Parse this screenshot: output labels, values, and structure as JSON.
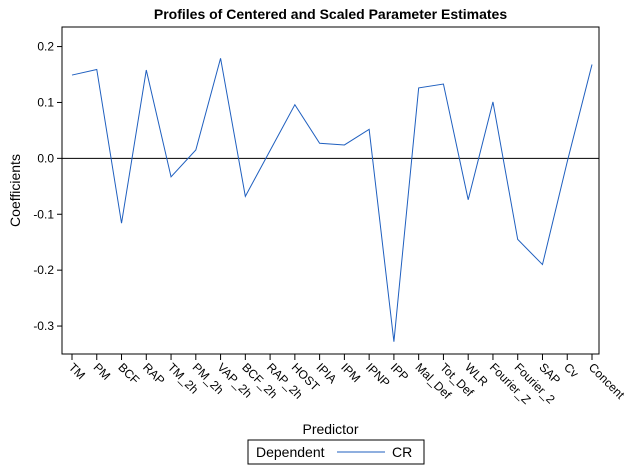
{
  "chart_data": {
    "type": "line",
    "title": "Profiles of Centered and Scaled Parameter Estimates",
    "xlabel": "Predictor",
    "ylabel": "Coefficients",
    "categories": [
      "TM",
      "PM",
      "BCF",
      "RAP",
      "TM_2h",
      "PM_2h",
      "VAP_2h",
      "BCF_2h",
      "RAP_2h",
      "HOST",
      "IPIA",
      "IPM",
      "IPNP",
      "IPP",
      "Mal_Def",
      "Tot_Def",
      "WLR",
      "Fourier_Z",
      "Fourier_2",
      "SAP",
      "Cv",
      "Concent"
    ],
    "series": [
      {
        "name": "CR",
        "color": "#1f5fbf",
        "values": [
          0.149,
          0.159,
          -0.116,
          0.158,
          -0.033,
          0.015,
          0.179,
          -0.068,
          0.014,
          0.096,
          0.027,
          0.024,
          0.052,
          -0.328,
          0.126,
          0.133,
          -0.074,
          0.101,
          -0.145,
          -0.19,
          -0.006,
          0.168
        ]
      }
    ],
    "yticks": [
      "-0.3",
      "-0.2",
      "-0.1",
      "0.0",
      "0.1",
      "0.2"
    ],
    "ylim": [
      -0.35,
      0.235
    ],
    "reference_line_y": 0,
    "grid": false,
    "legend": {
      "position": "bottom-center",
      "label": "Dependent",
      "entries": [
        "CR"
      ]
    }
  }
}
